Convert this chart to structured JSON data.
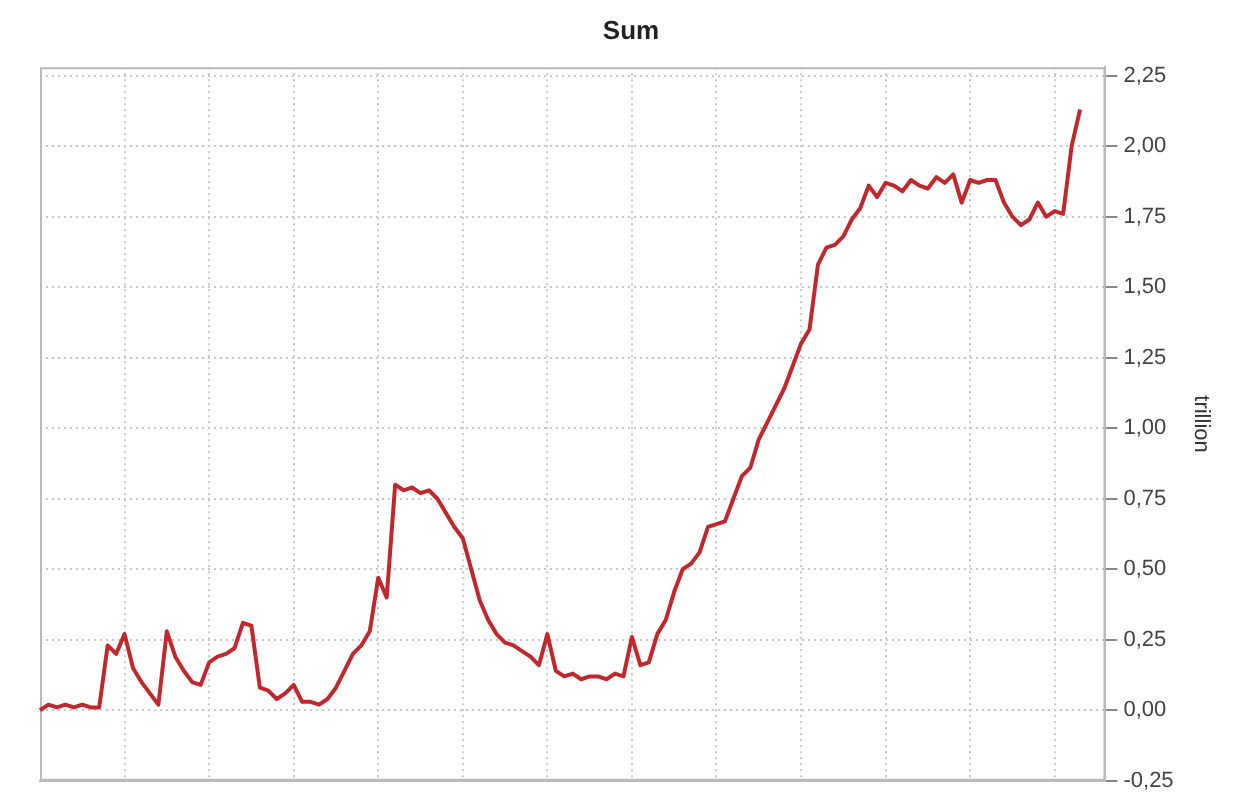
{
  "chart_data": {
    "type": "line",
    "title": "Sum",
    "ylabel": "trillion",
    "categories": [
      null,
      null,
      null,
      null,
      null,
      null,
      null,
      null,
      null,
      null,
      null,
      null,
      null,
      null,
      null,
      null,
      null,
      null,
      null,
      null,
      null,
      null,
      null,
      null,
      null,
      null,
      null,
      null,
      null,
      null,
      null,
      null,
      null,
      null,
      null,
      null,
      null,
      null,
      null,
      null,
      null,
      null,
      null,
      null,
      null,
      null,
      null,
      null,
      null,
      null,
      null,
      null,
      null,
      null,
      null,
      null,
      null,
      null,
      null,
      null,
      null,
      null,
      null,
      null,
      null,
      null,
      null,
      null,
      null,
      null,
      null,
      null,
      null,
      null,
      null,
      null,
      null,
      null,
      null,
      null,
      null,
      null,
      null,
      null,
      null,
      null,
      null,
      null,
      null,
      null,
      null,
      null,
      null,
      null,
      null,
      null,
      null,
      null,
      null,
      null,
      null,
      null,
      null,
      null,
      null,
      null,
      null,
      null,
      null,
      null,
      null,
      null,
      null,
      null,
      null,
      null,
      null,
      null,
      null,
      null,
      null,
      null,
      null,
      null,
      null,
      null,
      null
    ],
    "series": [
      {
        "color": "#c0282d",
        "values": [
          0.0,
          0.02,
          0.01,
          0.02,
          0.01,
          0.02,
          0.01,
          0.01,
          0.23,
          0.2,
          0.27,
          0.15,
          0.1,
          0.06,
          0.02,
          0.28,
          0.19,
          0.14,
          0.1,
          0.09,
          0.17,
          0.19,
          0.2,
          0.22,
          0.31,
          0.3,
          0.08,
          0.07,
          0.04,
          0.06,
          0.09,
          0.03,
          0.03,
          0.02,
          0.04,
          0.08,
          0.14,
          0.2,
          0.23,
          0.28,
          0.47,
          0.4,
          0.8,
          0.78,
          0.79,
          0.77,
          0.78,
          0.75,
          0.7,
          0.65,
          0.61,
          0.5,
          0.39,
          0.32,
          0.27,
          0.24,
          0.23,
          0.21,
          0.19,
          0.16,
          0.27,
          0.14,
          0.12,
          0.13,
          0.11,
          0.12,
          0.12,
          0.11,
          0.13,
          0.12,
          0.26,
          0.16,
          0.17,
          0.27,
          0.32,
          0.42,
          0.5,
          0.52,
          0.56,
          0.65,
          0.66,
          0.67,
          0.75,
          0.83,
          0.86,
          0.96,
          1.02,
          1.08,
          1.14,
          1.22,
          1.3,
          1.35,
          1.58,
          1.64,
          1.65,
          1.68,
          1.74,
          1.78,
          1.86,
          1.82,
          1.87,
          1.86,
          1.84,
          1.88,
          1.86,
          1.85,
          1.89,
          1.87,
          1.9,
          1.8,
          1.88,
          1.87,
          1.88,
          1.88,
          1.8,
          1.75,
          1.72,
          1.74,
          1.8,
          1.75,
          1.77,
          1.76,
          2.0,
          2.13,
          null,
          null,
          null
        ]
      }
    ],
    "ylim": [
      -0.25,
      2.28
    ],
    "yticks": [
      {
        "value": -0.25,
        "label": "-0,25"
      },
      {
        "value": 0,
        "label": "0,00"
      },
      {
        "value": 0.25,
        "label": "0,25"
      },
      {
        "value": 0.5,
        "label": "0,50"
      },
      {
        "value": 0.75,
        "label": "0,75"
      },
      {
        "value": 1,
        "label": "1,00"
      },
      {
        "value": 1.25,
        "label": "1,25"
      },
      {
        "value": 1.5,
        "label": "1,50"
      },
      {
        "value": 1.75,
        "label": "1,75"
      },
      {
        "value": 2,
        "label": "2,00"
      },
      {
        "value": 2.25,
        "label": "2,25"
      }
    ],
    "grid": true,
    "legend": false,
    "tick_labels": "y",
    "marker": "none",
    "line_style": "solid"
  }
}
